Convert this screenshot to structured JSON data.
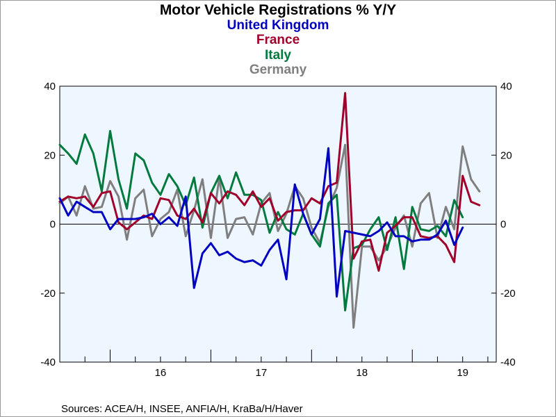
{
  "chart_data": {
    "type": "line",
    "title": "Motor Vehicle Registrations % Y/Y",
    "ylim": [
      -40,
      40
    ],
    "yticks": [
      -40,
      -20,
      0,
      20,
      40
    ],
    "yticks_right": [
      -40,
      -20,
      0,
      20,
      40
    ],
    "xlim": [
      "2015-07",
      "2019-11"
    ],
    "xtick_labels": [
      {
        "label": "16",
        "x": "2016-07"
      },
      {
        "label": "17",
        "x": "2017-07"
      },
      {
        "label": "18",
        "x": "2018-07"
      },
      {
        "label": "19",
        "x": "2019-07"
      }
    ],
    "zero_line": true,
    "grid": false,
    "legend_placement": "top-center",
    "source": "Sources:  ACEA/H, INSEE, ANFIA/H, KraBa/H/Haver",
    "series": [
      {
        "name": "United Kingdom",
        "color": "#0000c0",
        "start": "2015-07",
        "values": [
          7.5,
          2.5,
          6.5,
          5,
          3.5,
          3.5,
          -1.5,
          1.5,
          1.5,
          1.5,
          2,
          3,
          0,
          2,
          -0.5,
          8,
          -18.5,
          -8.5,
          -5.5,
          -9,
          -8,
          -10,
          -11,
          -10.5,
          -12,
          -7.5,
          -4.5,
          -16,
          11.5,
          3,
          -3,
          1.5,
          22,
          -21,
          -2,
          -2.5,
          -3,
          -3.5,
          -2,
          0.5,
          -3.5,
          -3.5,
          -5,
          -4.5,
          -4.5,
          -3,
          1,
          -6,
          -1
        ]
      },
      {
        "name": "France",
        "color": "#a0002a",
        "start": "2015-07",
        "values": [
          6.5,
          8,
          7.5,
          8,
          5,
          9,
          9.5,
          0.5,
          -1.5,
          0.5,
          2.5,
          1.5,
          7.5,
          7,
          2.5,
          1.5,
          4.5,
          0.5,
          9,
          6,
          9.5,
          8.5,
          5.5,
          9.5,
          5,
          7.5,
          1,
          3.5,
          4,
          4,
          7.5,
          6,
          11,
          12,
          38,
          -10,
          -5,
          -4.5,
          -13.5,
          -2.5,
          -0.5,
          2,
          2,
          -3.5,
          -4,
          -3.5,
          -6,
          -11,
          14,
          6.5,
          5.5
        ]
      },
      {
        "name": "Italy",
        "color": "#007a3d",
        "start": "2015-07",
        "values": [
          23,
          20.5,
          17.5,
          26,
          20.5,
          9.5,
          27,
          13,
          4.5,
          20.5,
          18.5,
          12,
          8.5,
          14.5,
          11,
          5.5,
          13.5,
          -1,
          9,
          14,
          7.5,
          15,
          8.5,
          8.5,
          7,
          -2.5,
          3.5,
          -1.5,
          -3,
          3,
          -3,
          -6.5,
          6,
          8.5,
          -25,
          -7,
          -6,
          -1.5,
          2,
          -7.5,
          2,
          -13,
          5,
          -1.5,
          -2,
          -0.5,
          -3.5,
          7,
          2
        ]
      },
      {
        "name": "Germany",
        "color": "#7f7f7f",
        "start": "2015-07",
        "values": [
          6,
          8,
          2.5,
          11,
          4.5,
          5,
          12.5,
          8,
          -4.5,
          7.5,
          10,
          -3.5,
          1.5,
          3.5,
          10,
          -3.5,
          4,
          13,
          -4,
          13.5,
          -4,
          1.5,
          2,
          -3,
          6,
          9,
          -2,
          3,
          11,
          7.5,
          -1,
          -5.5,
          5,
          10.5,
          23,
          -30,
          -6.5,
          -6.5,
          -10.5,
          -6.5,
          -1,
          2.5,
          -6.5,
          6,
          9,
          -4,
          5,
          -1.5,
          22.5,
          13,
          9.5
        ]
      }
    ]
  }
}
